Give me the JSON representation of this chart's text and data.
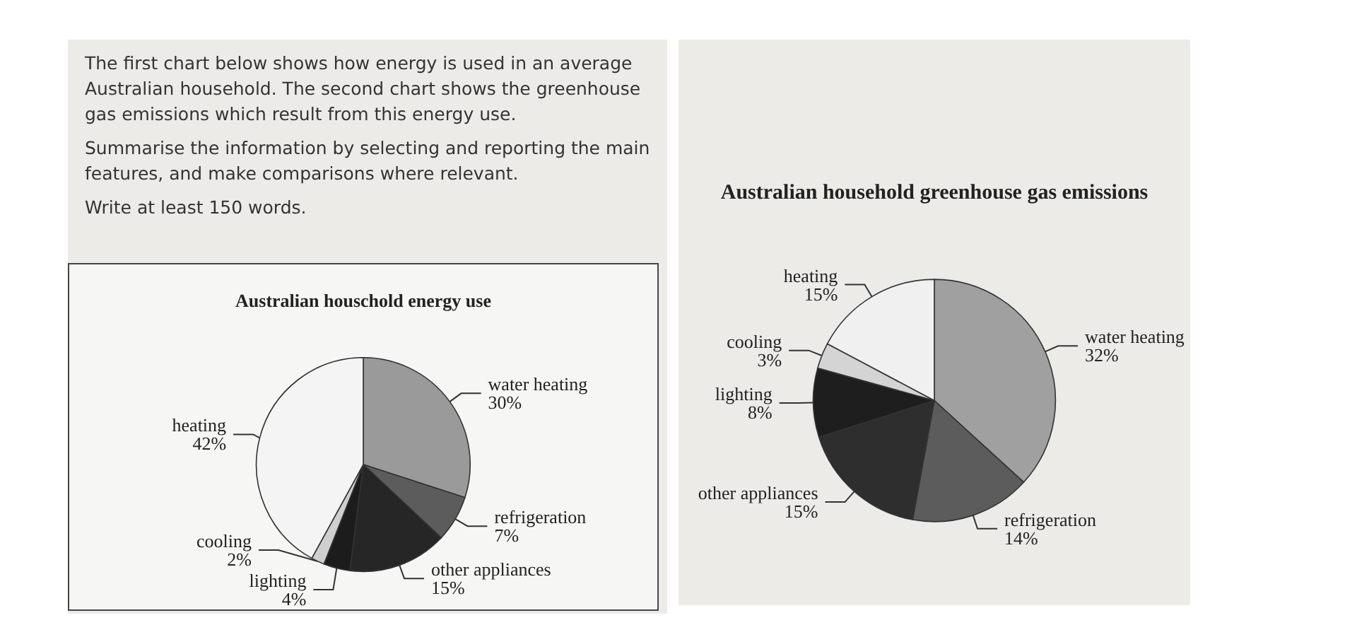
{
  "chart_data": [
    {
      "type": "pie",
      "title": "Australian houschold energy use",
      "annotations": [
        "The first chart below shows how energy is used in an average Australian household. The second chart shows the greenhouse gas emissions which result from this energy use.",
        "Summarise the information by selecting and reporting the main features, and make comparisons where relevant.",
        "Write at least 150 words."
      ],
      "categories": [
        "water heating",
        "refrigeration",
        "other appliances",
        "lighting",
        "cooling",
        "heating"
      ],
      "values": [
        30,
        7,
        15,
        4,
        2,
        42
      ],
      "value_labels": [
        "30%",
        "7%",
        "15%",
        "4%",
        "2%",
        "42%"
      ],
      "colors": [
        "#9a9a9a",
        "#5c5c5c",
        "#262626",
        "#1c1c1c",
        "#cfcfcf",
        "#f4f4f4"
      ]
    },
    {
      "type": "pie",
      "title": "Australian household greenhouse gas emissions",
      "categories": [
        "water heating",
        "refrigeration",
        "other appliances",
        "lighting",
        "cooling",
        "heating"
      ],
      "values": [
        32,
        14,
        15,
        8,
        3,
        15
      ],
      "value_labels": [
        "32%",
        "14%",
        "15%",
        "8%",
        "3%",
        "15%"
      ],
      "colors": [
        "#a0a0a0",
        "#5c5c5c",
        "#2e2e2e",
        "#1e1e1e",
        "#d4d4d4",
        "#f0f0f0"
      ]
    }
  ]
}
